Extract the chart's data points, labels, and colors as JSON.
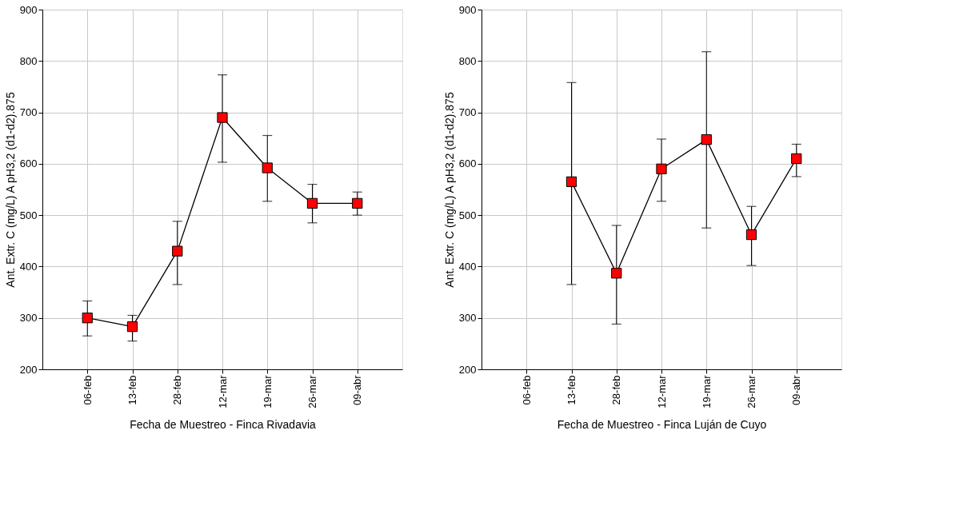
{
  "chart_data": [
    {
      "type": "line",
      "xlabel": "Fecha de Muestreo - Finca Rivadavia",
      "ylabel": "Ant. Extr. C (mg/L) A pH3,2 (d1-d2).875",
      "categories": [
        "06-feb",
        "13-feb",
        "28-feb",
        "12-mar",
        "19-mar",
        "26-mar",
        "09-abr"
      ],
      "series": [
        {
          "color": "#ff0000",
          "values": [
            300,
            283,
            430,
            690,
            592,
            523,
            523
          ],
          "errors": [
            [
              265,
              333
            ],
            [
              255,
              305
            ],
            [
              365,
              488
            ],
            [
              603,
              773
            ],
            [
              527,
              655
            ],
            [
              485,
              560
            ],
            [
              500,
              545
            ]
          ]
        }
      ],
      "ylim": [
        200,
        900
      ],
      "yticks": [
        200,
        300,
        400,
        500,
        600,
        700,
        800,
        900
      ],
      "grid": true,
      "marker": "square",
      "line_style": "solid"
    },
    {
      "type": "line",
      "xlabel": "Fecha de Muestreo - Finca Luján de Cuyo",
      "ylabel": "Ant. Extr. C (mg/L) A pH3,2 (d1-d2).875",
      "categories": [
        "06-feb",
        "13-feb",
        "28-feb",
        "12-mar",
        "19-mar",
        "26-mar",
        "09-abr"
      ],
      "series": [
        {
          "color": "#ff0000",
          "values": [
            null,
            565,
            387,
            590,
            647,
            462,
            610
          ],
          "errors": [
            null,
            [
              365,
              758
            ],
            [
              288,
              480
            ],
            [
              527,
              648
            ],
            [
              475,
              818
            ],
            [
              402,
              517
            ],
            [
              575,
              638
            ]
          ]
        }
      ],
      "ylim": [
        200,
        900
      ],
      "yticks": [
        200,
        300,
        400,
        500,
        600,
        700,
        800,
        900
      ],
      "grid": true,
      "marker": "square",
      "line_style": "solid"
    }
  ]
}
